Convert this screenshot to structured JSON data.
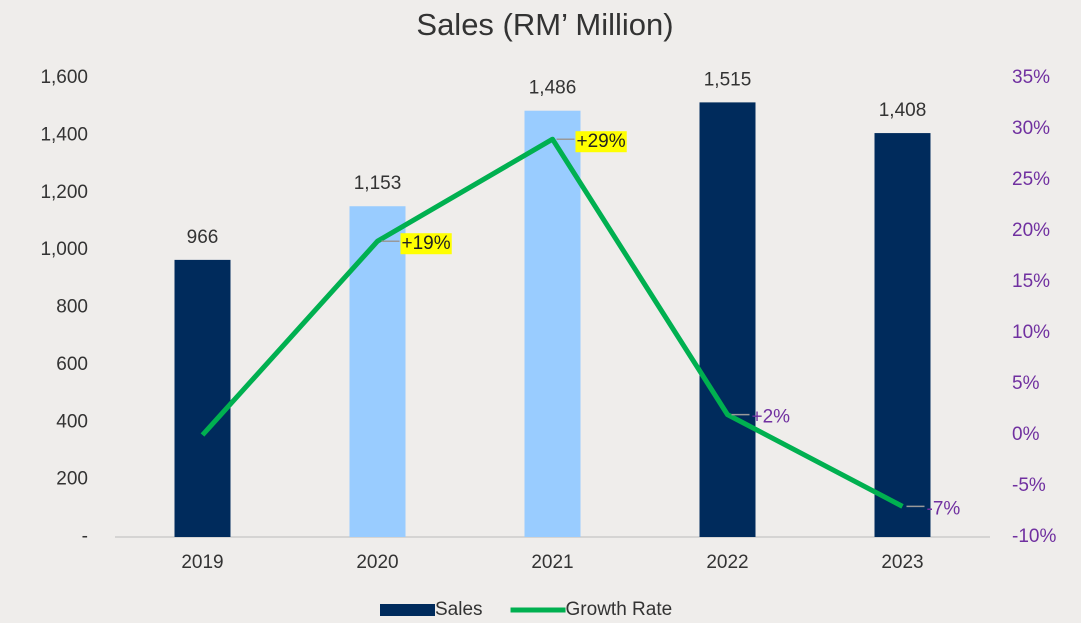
{
  "chart_data": {
    "type": "bar",
    "title": "Sales (RM’ Million)",
    "categories": [
      "2019",
      "2020",
      "2021",
      "2022",
      "2023"
    ],
    "series": [
      {
        "name": "Sales",
        "type": "bar",
        "color": "#002b5c",
        "colors": [
          "#002b5c",
          "#99ccff",
          "#99ccff",
          "#002b5c",
          "#002b5c"
        ],
        "values": [
          966,
          1153,
          1486,
          1515,
          1408
        ],
        "value_labels": [
          "966",
          "1,153",
          "1,486",
          "1,515",
          "1,408"
        ]
      },
      {
        "name": "Growth Rate",
        "type": "line",
        "axis": "y2",
        "color": "#00b050",
        "values": [
          0,
          19,
          29,
          2,
          -7
        ],
        "value_labels": [
          null,
          "+19%",
          "+29%",
          "+2%",
          "-7%"
        ],
        "label_highlight": [
          false,
          true,
          true,
          false,
          false
        ],
        "label_color": "#7030a0",
        "highlight_color": "#ffff00"
      }
    ],
    "ylim": [
      0,
      1600
    ],
    "yticks": [
      {
        "value": 0,
        "label": "-"
      },
      200,
      400,
      600,
      800,
      {
        "value": 1000,
        "label": "1,000"
      },
      {
        "value": 1200,
        "label": "1,200"
      },
      {
        "value": 1400,
        "label": "1,400"
      },
      {
        "value": 1600,
        "label": "1,600"
      }
    ],
    "y2lim": [
      -10,
      35
    ],
    "y2ticks": [
      {
        "value": -10,
        "label": "-10%"
      },
      {
        "value": -5,
        "label": "-5%"
      },
      {
        "value": 0,
        "label": "0%"
      },
      {
        "value": 5,
        "label": "5%"
      },
      {
        "value": 10,
        "label": "10%"
      },
      {
        "value": 15,
        "label": "15%"
      },
      {
        "value": 20,
        "label": "20%"
      },
      {
        "value": 25,
        "label": "25%"
      },
      {
        "value": 30,
        "label": "30%"
      },
      {
        "value": 35,
        "label": "35%"
      }
    ],
    "y2_color": "#7030a0",
    "grid": false,
    "legend": "bottom"
  }
}
